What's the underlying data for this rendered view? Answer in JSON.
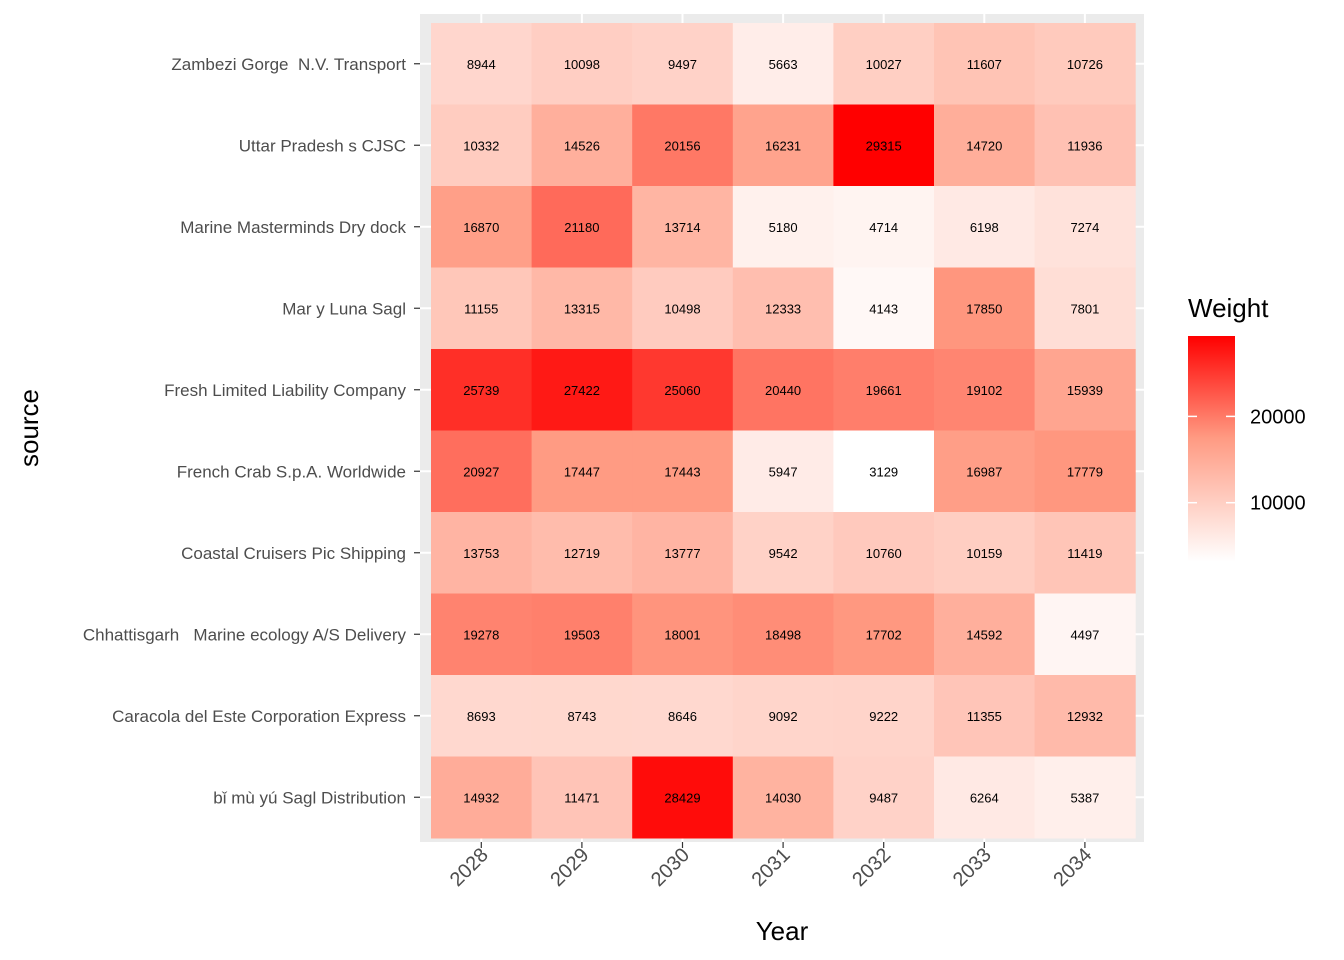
{
  "chart_data": {
    "type": "heatmap",
    "title": "",
    "xlabel": "Year",
    "ylabel": "source",
    "x": [
      "2028",
      "2029",
      "2030",
      "2031",
      "2032",
      "2033",
      "2034"
    ],
    "y": [
      "Zambezi Gorge  N.V. Transport",
      "Uttar Pradesh s CJSC",
      "Marine Masterminds Dry dock",
      "Mar y Luna Sagl",
      "Fresh Limited Liability Company",
      "French Crab S.p.A. Worldwide",
      "Coastal Cruisers Pic Shipping",
      "Chhattisgarh   Marine ecology A/S Delivery",
      "Caracola del Este Corporation Express",
      "bǐ mù yú Sagl Distribution"
    ],
    "values": [
      [
        8944,
        10098,
        9497,
        5663,
        10027,
        11607,
        10726
      ],
      [
        10332,
        14526,
        20156,
        16231,
        29315,
        14720,
        11936
      ],
      [
        16870,
        21180,
        13714,
        5180,
        4714,
        6198,
        7274
      ],
      [
        11155,
        13315,
        10498,
        12333,
        4143,
        17850,
        7801
      ],
      [
        25739,
        27422,
        25060,
        20440,
        19661,
        19102,
        15939
      ],
      [
        20927,
        17447,
        17443,
        5947,
        3129,
        16987,
        17779
      ],
      [
        13753,
        12719,
        13777,
        9542,
        10760,
        10159,
        11419
      ],
      [
        19278,
        19503,
        18001,
        18498,
        17702,
        14592,
        4497
      ],
      [
        8693,
        8743,
        8646,
        9092,
        9222,
        11355,
        12932
      ],
      [
        14932,
        11471,
        28429,
        14030,
        9487,
        6264,
        5387
      ]
    ],
    "legend": {
      "title": "Weight",
      "ticks": [
        10000,
        20000
      ],
      "low_color": "#ffffff",
      "high_color": "#ff0000",
      "placement": "right"
    },
    "grid": true,
    "panel_background": "#ebebeb",
    "grid_color": "#ffffff"
  }
}
